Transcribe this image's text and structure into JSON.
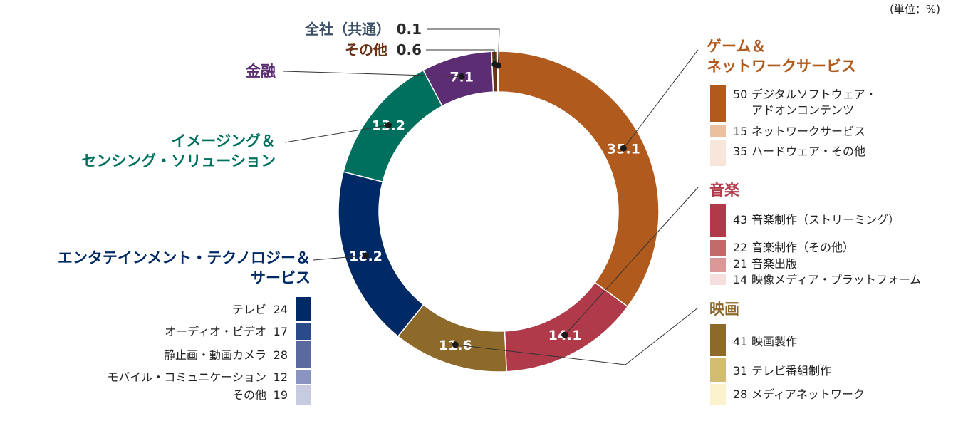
{
  "unit_label": "(単位：%)",
  "colors": {
    "game": "#b05a1e",
    "music": "#b03a4a",
    "movie": "#8e6a2a",
    "etc_ent": "#002a66",
    "imaging": "#00705e",
    "finance": "#5c2d73",
    "other": "#6a3218",
    "corporate": "#3a4f66",
    "leader": "#333333"
  },
  "chart_data": {
    "type": "donut",
    "unit": "%",
    "segments": [
      {
        "name": "ゲーム＆ネットワークサービス",
        "value": 35.1,
        "label": "35.1",
        "color": "#b05a1e"
      },
      {
        "name": "音楽",
        "value": 14.1,
        "label": "14.1",
        "color": "#b03a4a"
      },
      {
        "name": "映画",
        "value": 11.6,
        "label": "11.6",
        "color": "#8e6a2a"
      },
      {
        "name": "エンタテインメント・テクノロジー＆サービス",
        "value": 18.2,
        "label": "18.2",
        "color": "#002a66"
      },
      {
        "name": "イメージング＆センシング・ソリューション",
        "value": 13.2,
        "label": "13.2",
        "color": "#00705e"
      },
      {
        "name": "金融",
        "value": 7.1,
        "label": "7.1",
        "color": "#5c2d73"
      },
      {
        "name": "その他",
        "value": 0.6,
        "label": "0.6",
        "color": "#6a3218"
      },
      {
        "name": "全社（共通）",
        "value": 0.1,
        "label": "0.1",
        "color": "#2a2a2a"
      }
    ],
    "segment_titles": {
      "game": [
        "ゲーム＆",
        "ネットワークサービス"
      ],
      "music": [
        "音楽"
      ],
      "movie": [
        "映画"
      ],
      "etc_ent": [
        "エンタテインメント・テクノロジー＆",
        "サービス"
      ],
      "imaging": [
        "イメージング＆",
        "センシング・ソリューション"
      ],
      "finance": [
        "金融"
      ],
      "other": [
        "その他"
      ],
      "corporate": [
        "全社（共通）"
      ]
    },
    "breakdowns": {
      "game": [
        {
          "value": "50",
          "label_lines": [
            "デジタルソフトウェア・",
            "アドオンコンテンツ"
          ],
          "color": "#b05a1e"
        },
        {
          "value": "15",
          "label_lines": [
            "ネットワークサービス"
          ],
          "color": "#ebc09f"
        },
        {
          "value": "35",
          "label_lines": [
            "ハードウェア・その他"
          ],
          "color": "#f8e6da"
        }
      ],
      "music": [
        {
          "value": "43",
          "label_lines": [
            "音楽制作（ストリーミング）"
          ],
          "color": "#b03a4a"
        },
        {
          "value": "22",
          "label_lines": [
            "音楽制作（その他）"
          ],
          "color": "#c06a6a"
        },
        {
          "value": "21",
          "label_lines": [
            "音楽出版"
          ],
          "color": "#dc9898"
        },
        {
          "value": "14",
          "label_lines": [
            "映像メディア・プラットフォーム"
          ],
          "color": "#f4dede"
        }
      ],
      "movie": [
        {
          "value": "41",
          "label_lines": [
            "映画製作"
          ],
          "color": "#8e6a2a"
        },
        {
          "value": "31",
          "label_lines": [
            "テレビ番組制作"
          ],
          "color": "#d2bc70"
        },
        {
          "value": "28",
          "label_lines": [
            "メディアネットワーク"
          ],
          "color": "#faf1cd"
        }
      ],
      "etc_ent": [
        {
          "value": "24",
          "label_lines": [
            "テレビ"
          ],
          "color": "#002a66"
        },
        {
          "value": "17",
          "label_lines": [
            "オーディオ・ビデオ"
          ],
          "color": "#2a4a8a"
        },
        {
          "value": "28",
          "label_lines": [
            "静止画・動画カメラ"
          ],
          "color": "#5a6aa0"
        },
        {
          "value": "12",
          "label_lines": [
            "モバイル・コミュニケーション"
          ],
          "color": "#8a94c0"
        },
        {
          "value": "19",
          "label_lines": [
            "その他"
          ],
          "color": "#c6cbe0"
        }
      ]
    }
  }
}
